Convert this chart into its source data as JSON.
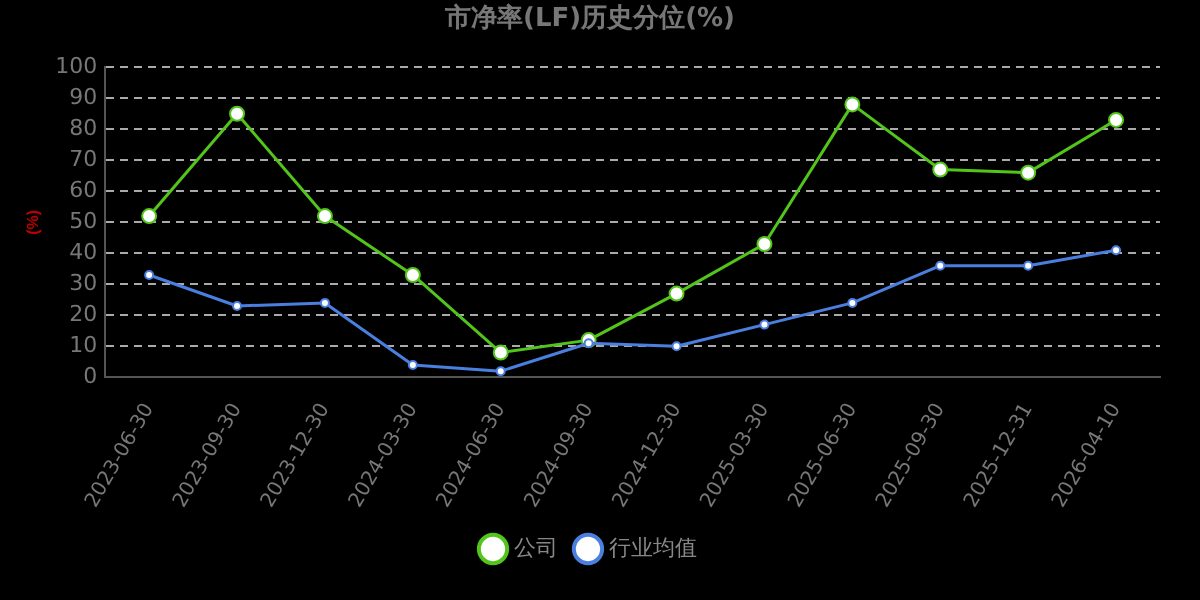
{
  "chart_data": {
    "type": "line",
    "title": "市净率(LF)历史分位(%)",
    "ylabel": "(%)",
    "categories": [
      "2023-06-30",
      "2023-09-30",
      "2023-12-30",
      "2024-03-30",
      "2024-06-30",
      "2024-09-30",
      "2024-12-30",
      "2025-03-30",
      "2025-06-30",
      "2025-09-30",
      "2025-12-31",
      "2026-04-10"
    ],
    "series": [
      {
        "name": "公司",
        "color": "#52c41a",
        "values": [
          52,
          85,
          52,
          33,
          8,
          12,
          27,
          43,
          88,
          67,
          66,
          83
        ]
      },
      {
        "name": "行业均值",
        "color": "#4a7fe0",
        "values": [
          33,
          23,
          24,
          4,
          2,
          11,
          10,
          17,
          24,
          36,
          36,
          41
        ]
      }
    ],
    "ylim": [
      0,
      100
    ],
    "yticks": [
      0,
      10,
      20,
      30,
      40,
      50,
      60,
      70,
      80,
      90,
      100
    ],
    "grid": "y",
    "legend": "bottom",
    "marker": "circle",
    "line_style": "solid"
  }
}
